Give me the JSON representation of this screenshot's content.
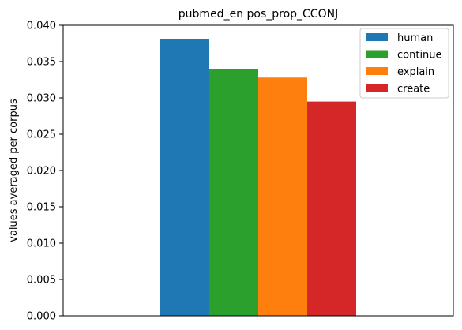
{
  "chart_data": {
    "type": "bar",
    "title": "pubmed_en pos_prop_CCONJ",
    "xlabel": "",
    "ylabel": "values averaged per corpus",
    "ylim": [
      0,
      0.04
    ],
    "yticks": [
      "0.000",
      "0.005",
      "0.010",
      "0.015",
      "0.020",
      "0.025",
      "0.030",
      "0.035",
      "0.040"
    ],
    "grid": false,
    "legend_position": "top-right",
    "series": [
      {
        "name": "human",
        "value": 0.0381,
        "color": "#1f77b4"
      },
      {
        "name": "continue",
        "value": 0.034,
        "color": "#2ca02c"
      },
      {
        "name": "explain",
        "value": 0.0328,
        "color": "#ff7f0e"
      },
      {
        "name": "create",
        "value": 0.0295,
        "color": "#d62728"
      }
    ]
  }
}
